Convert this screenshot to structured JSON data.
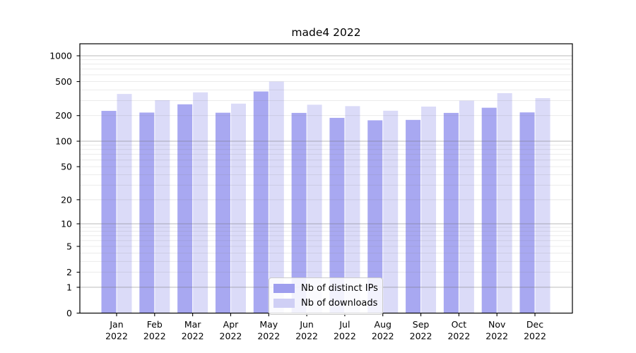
{
  "chart_data": {
    "type": "bar",
    "title": "made4 2022",
    "categories": [
      {
        "month": "Jan",
        "year": "2022"
      },
      {
        "month": "Feb",
        "year": "2022"
      },
      {
        "month": "Mar",
        "year": "2022"
      },
      {
        "month": "Apr",
        "year": "2022"
      },
      {
        "month": "May",
        "year": "2022"
      },
      {
        "month": "Jun",
        "year": "2022"
      },
      {
        "month": "Jul",
        "year": "2022"
      },
      {
        "month": "Aug",
        "year": "2022"
      },
      {
        "month": "Sep",
        "year": "2022"
      },
      {
        "month": "Oct",
        "year": "2022"
      },
      {
        "month": "Nov",
        "year": "2022"
      },
      {
        "month": "Dec",
        "year": "2022"
      }
    ],
    "series": [
      {
        "name": "Nb of distinct IPs",
        "color": "#a8a8f1",
        "legend_color": "#9e9eee",
        "values": [
          227,
          217,
          271,
          216,
          383,
          215,
          188,
          176,
          178,
          215,
          247,
          218
        ]
      },
      {
        "name": "Nb of downloads",
        "color": "#dbdbf8",
        "legend_color": "#cfcff5",
        "values": [
          358,
          303,
          374,
          276,
          500,
          268,
          258,
          228,
          255,
          299,
          366,
          320
        ]
      }
    ],
    "yscale": "symlog",
    "yticks": [
      0,
      1,
      2,
      5,
      10,
      20,
      50,
      100,
      200,
      500,
      1000
    ],
    "ylim": [
      0,
      1381
    ],
    "grid": "major+minor",
    "legend_position": "lower center",
    "axis_color": "#000000",
    "grid_major_rgba": "rgba(110,110,110,0.48)",
    "grid_minor_rgba": "rgba(130,130,130,0.18)"
  }
}
